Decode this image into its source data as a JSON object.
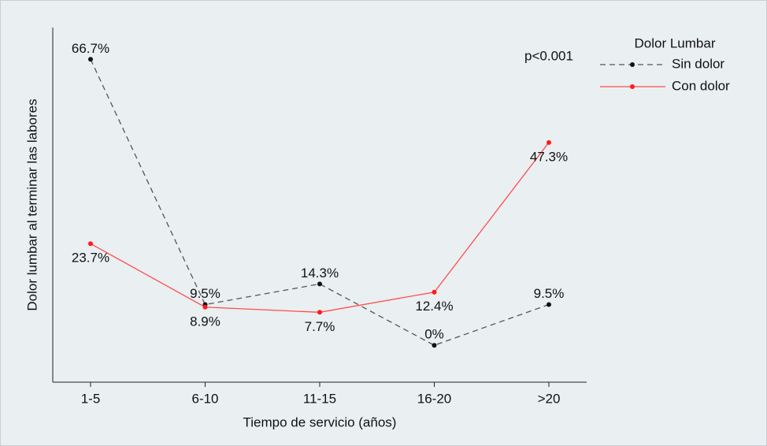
{
  "chart_data": {
    "type": "line",
    "x_label": "Tiempo de servicio (años)",
    "y_label": "Dolor lumbar al terminar las labores",
    "annotation": "p<0.001",
    "legend_title": "Dolor Lumbar",
    "legend_position": "right",
    "categories": [
      "1-5",
      "6-10",
      "11-15",
      "16-20",
      ">20"
    ],
    "ylim": [
      -8.6,
      74.1
    ],
    "series": [
      {
        "name": "Sin dolor",
        "color": "#555555",
        "dashed": true,
        "label_position": "above",
        "values": [
          66.7,
          9.5,
          14.3,
          0,
          9.5
        ],
        "value_labels": [
          "66.7%",
          "9.5%",
          "14.3%",
          "0%",
          "9.5%"
        ]
      },
      {
        "name": "Con dolor",
        "color": "#ff4d4d",
        "dashed": false,
        "label_position": "below",
        "values": [
          23.7,
          8.9,
          7.7,
          12.4,
          47.3
        ],
        "value_labels": [
          "23.7%",
          "8.9%",
          "7.7%",
          "12.4%",
          "47.3%"
        ]
      }
    ]
  }
}
